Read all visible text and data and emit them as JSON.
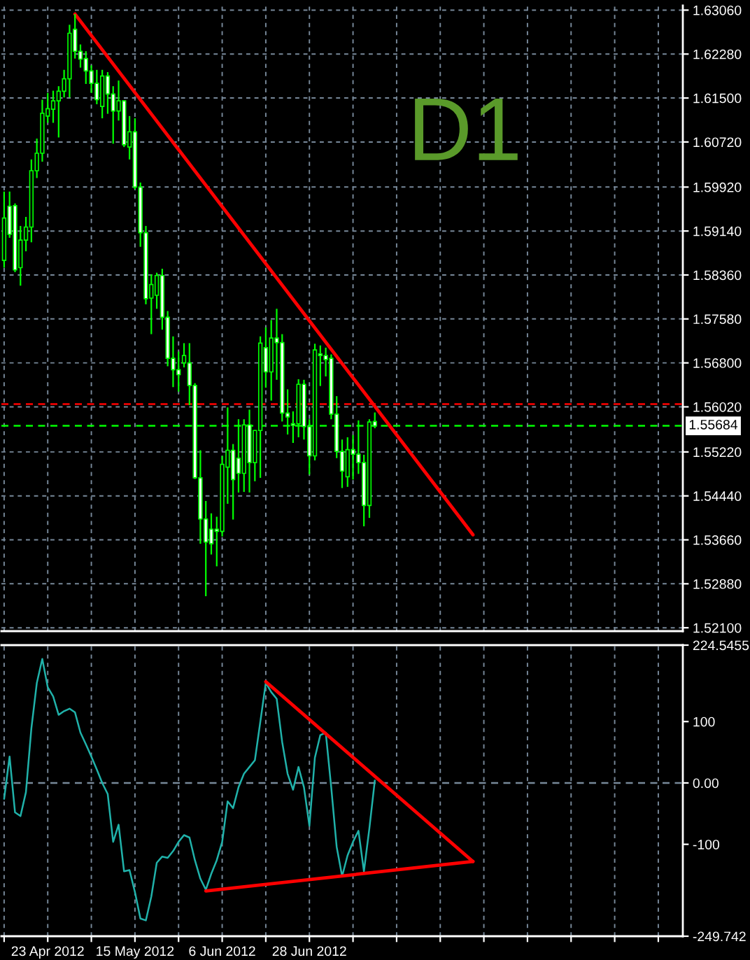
{
  "chart_data": [
    {
      "type": "candlestick",
      "categories": [
        null,
        null,
        null,
        null,
        null,
        null,
        null,
        null,
        null,
        null,
        null,
        null,
        null,
        null,
        null,
        null,
        null,
        null,
        null,
        null,
        null,
        null,
        null,
        null,
        null,
        null,
        null,
        null,
        null,
        null,
        null,
        null,
        null,
        null,
        null,
        null,
        null,
        null,
        null,
        null,
        null,
        null,
        null,
        null,
        null,
        null,
        null,
        null,
        null,
        null,
        null,
        null,
        null,
        null,
        null,
        null,
        null,
        null,
        null,
        null,
        null,
        null,
        null,
        null,
        null,
        null,
        null,
        null,
        null,
        null,
        null,
        null,
        null,
        null,
        null,
        null,
        null,
        null,
        null,
        null,
        null,
        null,
        null,
        null,
        null,
        null,
        null,
        null,
        null,
        null,
        null,
        null,
        null,
        null,
        null,
        null,
        null,
        null,
        null,
        null,
        null,
        null,
        null,
        null,
        null,
        null,
        null,
        null,
        null,
        null,
        null,
        null,
        null,
        null,
        null,
        null,
        null,
        null,
        null,
        null,
        null,
        null,
        null,
        null,
        null
      ],
      "ohlc": [
        [
          1.5862,
          1.5984,
          1.5849,
          1.5937
        ],
        [
          1.5958,
          1.5984,
          1.5902,
          1.5908
        ],
        [
          1.5959,
          1.5963,
          1.5841,
          1.5845
        ],
        [
          1.5849,
          1.5923,
          1.5817,
          1.5898
        ],
        [
          1.5898,
          1.5939,
          1.5878,
          1.5921
        ],
        [
          1.5921,
          1.6041,
          1.5894,
          1.6021
        ],
        [
          1.6021,
          1.6078,
          1.6008,
          1.6052
        ],
        [
          1.6052,
          1.6147,
          1.6037,
          1.6123
        ],
        [
          1.6118,
          1.6159,
          1.6106,
          1.6131
        ],
        [
          1.613,
          1.6163,
          1.6106,
          1.6145
        ],
        [
          1.6145,
          1.6171,
          1.608,
          1.6162
        ],
        [
          1.6162,
          1.62,
          1.6151,
          1.6184
        ],
        [
          1.6184,
          1.628,
          1.6151,
          1.6265
        ],
        [
          1.6272,
          1.6299,
          1.622,
          1.6233
        ],
        [
          1.6233,
          1.6245,
          1.6204,
          1.6219
        ],
        [
          1.622,
          1.6233,
          1.6175,
          1.6198
        ],
        [
          1.6198,
          1.6208,
          1.6159,
          1.6176
        ],
        [
          1.6176,
          1.62,
          1.6139,
          1.6147
        ],
        [
          1.6135,
          1.62,
          1.6114,
          1.6189
        ],
        [
          1.6189,
          1.6196,
          1.6122,
          1.6157
        ],
        [
          1.6157,
          1.6171,
          1.6069,
          1.6127
        ],
        [
          1.6127,
          1.6181,
          1.611,
          1.6145
        ],
        [
          1.6145,
          1.6146,
          1.6063,
          1.6067
        ],
        [
          1.6063,
          1.6118,
          1.6041,
          1.609
        ],
        [
          1.609,
          1.6114,
          1.5988,
          1.5992
        ],
        [
          1.5992,
          1.6,
          1.5886,
          1.5911
        ],
        [
          1.5911,
          1.5923,
          1.5784,
          1.5794
        ],
        [
          1.5795,
          1.5837,
          1.5731,
          1.5819
        ],
        [
          1.58,
          1.584,
          1.5776,
          1.5835
        ],
        [
          1.5835,
          1.5847,
          1.5739,
          1.5761
        ],
        [
          1.5761,
          1.5772,
          1.5674,
          1.5688
        ],
        [
          1.5688,
          1.5727,
          1.5637,
          1.5668
        ],
        [
          1.5668,
          1.57,
          1.5629,
          1.5659
        ],
        [
          1.568,
          1.5715,
          1.5672,
          1.5693
        ],
        [
          1.568,
          1.5715,
          1.5605,
          1.564
        ],
        [
          1.564,
          1.5644,
          1.5474,
          1.5476
        ],
        [
          1.5476,
          1.5525,
          1.5359,
          1.5403
        ],
        [
          1.5403,
          1.5435,
          1.5266,
          1.5362
        ],
        [
          1.5385,
          1.5413,
          1.534,
          1.5359
        ],
        [
          1.5385,
          1.5407,
          1.5319,
          1.5381
        ],
        [
          1.5381,
          1.5515,
          1.5372,
          1.55
        ],
        [
          1.5495,
          1.5601,
          1.543,
          1.5525
        ],
        [
          1.5525,
          1.5536,
          1.5402,
          1.5473
        ],
        [
          1.5511,
          1.558,
          1.545,
          1.5484
        ],
        [
          1.5484,
          1.558,
          1.5451,
          1.557
        ],
        [
          1.557,
          1.5597,
          1.545,
          1.5503
        ],
        [
          1.5503,
          1.5561,
          1.547,
          1.556
        ],
        [
          1.556,
          1.5727,
          1.5476,
          1.5715
        ],
        [
          1.5707,
          1.5743,
          1.5636,
          1.5664
        ],
        [
          1.5664,
          1.5756,
          1.5613,
          1.5724
        ],
        [
          1.5724,
          1.5776,
          1.565,
          1.5716
        ],
        [
          1.5716,
          1.5731,
          1.5576,
          1.5591
        ],
        [
          1.5591,
          1.5633,
          1.5553,
          1.5584
        ],
        [
          1.5572,
          1.5594,
          1.5538,
          1.5569
        ],
        [
          1.5572,
          1.5651,
          1.5548,
          1.5642
        ],
        [
          1.5642,
          1.565,
          1.5544,
          1.5567
        ],
        [
          1.5567,
          1.558,
          1.5482,
          1.5515
        ],
        [
          1.5515,
          1.5714,
          1.5507,
          1.5703
        ],
        [
          1.5696,
          1.5711,
          1.5639,
          1.5693
        ],
        [
          1.5693,
          1.5707,
          1.5656,
          1.5686
        ],
        [
          1.5688,
          1.5695,
          1.558,
          1.5589
        ],
        [
          1.5589,
          1.5621,
          1.5511,
          1.5523
        ],
        [
          1.5523,
          1.5544,
          1.5458,
          1.5488
        ],
        [
          1.5478,
          1.5548,
          1.546,
          1.5526
        ],
        [
          1.5526,
          1.5552,
          1.5473,
          1.5518
        ],
        [
          1.5518,
          1.5578,
          1.5483,
          1.5503
        ],
        [
          1.5503,
          1.5517,
          1.539,
          1.5427
        ],
        [
          1.5427,
          1.558,
          1.5405,
          1.5575
        ],
        [
          1.5576,
          1.5592,
          1.5564,
          1.5568
        ],
        null,
        null,
        null,
        null,
        null,
        null,
        null,
        null,
        null,
        null,
        null,
        null,
        null,
        null,
        null,
        null,
        null,
        null,
        null,
        null,
        null,
        null,
        null,
        null,
        null,
        null,
        null,
        null,
        null,
        null,
        null,
        null,
        null,
        null,
        null,
        null,
        null,
        null,
        null,
        null,
        null,
        null,
        null,
        null,
        null,
        null,
        null,
        null,
        null,
        null,
        null,
        null,
        null,
        null,
        null,
        null
      ],
      "series": [
        {
          "type": "line",
          "color": "#ff0000",
          "values": [
            null,
            null,
            null,
            null,
            null,
            null,
            null,
            null,
            null,
            null,
            null,
            null,
            null,
            1.6299,
            null,
            null,
            null,
            null,
            null,
            null,
            null,
            null,
            null,
            null,
            null,
            null,
            null,
            null,
            null,
            null,
            null,
            null,
            null,
            null,
            null,
            null,
            null,
            null,
            null,
            null,
            null,
            null,
            null,
            null,
            null,
            null,
            null,
            null,
            null,
            null,
            null,
            null,
            null,
            null,
            null,
            null,
            null,
            null,
            null,
            null,
            null,
            null,
            null,
            null,
            null,
            null,
            null,
            null,
            null,
            null,
            null,
            null,
            null,
            null,
            null,
            null,
            null,
            null,
            null,
            null,
            null,
            null,
            null,
            null,
            null,
            null,
            1.5375,
            null,
            null,
            null,
            null,
            null,
            null,
            null,
            null,
            null,
            null,
            null,
            null,
            null,
            null,
            null,
            null,
            null,
            null,
            null,
            null,
            null,
            null,
            null,
            null,
            null,
            null,
            null,
            null,
            null,
            null,
            null,
            null,
            null,
            null,
            null,
            null,
            null,
            null
          ]
        }
      ],
      "ylim": [
        1.5204,
        1.6314
      ],
      "yticks": [
        {
          "value": 1.6306,
          "label": "1.63060"
        },
        {
          "value": 1.6228,
          "label": "1.62280"
        },
        {
          "value": 1.615,
          "label": "1.61500"
        },
        {
          "value": 1.6072,
          "label": "1.60720"
        },
        {
          "value": 1.5992,
          "label": "1.59920"
        },
        {
          "value": 1.5914,
          "label": "1.59140"
        },
        {
          "value": 1.5836,
          "label": "1.58360"
        },
        {
          "value": 1.5758,
          "label": "1.57580"
        },
        {
          "value": 1.568,
          "label": "1.56800"
        },
        {
          "value": 1.5602,
          "label": "1.56020"
        },
        {
          "value": 1.5522,
          "label": "1.55220"
        },
        {
          "value": 1.5444,
          "label": "1.54440"
        },
        {
          "value": 1.5366,
          "label": "1.53660"
        },
        {
          "value": 1.5288,
          "label": "1.52880"
        },
        {
          "value": 1.521,
          "label": "1.52100"
        }
      ],
      "grid": true,
      "tick_labels": "y",
      "ref_lines": [
        {
          "axis": "y",
          "value": 1.5607,
          "color": "#ff0000",
          "line_style": "dashed"
        },
        {
          "axis": "y",
          "value": 1.55684,
          "label": "1.55684",
          "color": "#00ff00",
          "line_style": "dashed"
        }
      ],
      "annotations": [
        "D1"
      ]
    },
    {
      "type": "line",
      "categories": [
        null,
        null,
        null,
        null,
        null,
        null,
        null,
        null,
        "23 Apr 2012",
        null,
        null,
        null,
        null,
        null,
        null,
        null,
        null,
        null,
        null,
        null,
        null,
        null,
        null,
        null,
        "15 May 2012",
        null,
        null,
        null,
        null,
        null,
        null,
        null,
        null,
        null,
        null,
        null,
        null,
        null,
        null,
        null,
        "6 Jun 2012",
        null,
        null,
        null,
        null,
        null,
        null,
        null,
        null,
        null,
        null,
        null,
        null,
        null,
        null,
        null,
        "28 Jun 2012",
        null,
        null,
        null,
        null,
        null,
        null,
        null,
        null,
        null,
        null,
        null,
        null,
        null,
        null,
        null,
        null,
        null,
        null,
        null,
        null,
        null,
        null,
        null,
        null,
        null,
        null,
        null,
        null,
        null,
        null,
        null,
        null,
        null,
        null,
        null,
        null,
        null,
        null,
        null,
        null,
        null,
        null,
        null,
        null,
        null,
        null,
        null,
        null,
        null,
        null,
        null,
        null,
        null,
        null,
        null,
        null,
        null,
        null,
        null,
        null,
        null,
        null,
        null,
        null,
        null,
        null,
        null,
        null
      ],
      "series": [
        {
          "color": "#20b2aa",
          "values": [
            -26,
            43,
            -48,
            -54,
            -15,
            89,
            163,
            202,
            156,
            141,
            111,
            117,
            121,
            115,
            82,
            63,
            43,
            22,
            0,
            -18,
            -96,
            -68,
            -144,
            -142,
            -178,
            -221,
            -224,
            -185,
            -130,
            -120,
            -122,
            -111,
            -96,
            -85,
            -89,
            -126,
            -156,
            -174,
            -148,
            -126,
            -96,
            -30,
            -41,
            -7,
            15,
            26,
            37,
            100,
            163,
            148,
            137,
            67,
            15,
            -11,
            26,
            -7,
            -70,
            41,
            78,
            82,
            -7,
            -104,
            -152,
            -118,
            -96,
            -78,
            -144,
            -74,
            4,
            null,
            null,
            null,
            null,
            null,
            null,
            null,
            null,
            null,
            null,
            null,
            null,
            null,
            null,
            null,
            null,
            null,
            null,
            null,
            null,
            null,
            null,
            null,
            null,
            null,
            null,
            null,
            null,
            null,
            null,
            null,
            null,
            null,
            null,
            null,
            null,
            null,
            null,
            null,
            null,
            null,
            null,
            null,
            null,
            null,
            null,
            null,
            null,
            null,
            null,
            null,
            null,
            null,
            null,
            null,
            null
          ]
        },
        {
          "type": "line",
          "color": "#ff0000",
          "values": [
            null,
            null,
            null,
            null,
            null,
            null,
            null,
            null,
            null,
            null,
            null,
            null,
            null,
            null,
            null,
            null,
            null,
            null,
            null,
            null,
            null,
            null,
            null,
            null,
            null,
            null,
            null,
            null,
            null,
            null,
            null,
            null,
            null,
            null,
            null,
            null,
            null,
            null,
            null,
            null,
            null,
            null,
            null,
            null,
            null,
            null,
            null,
            null,
            165,
            null,
            null,
            null,
            null,
            null,
            null,
            null,
            null,
            null,
            null,
            null,
            null,
            null,
            null,
            null,
            null,
            null,
            null,
            null,
            null,
            null,
            null,
            null,
            null,
            null,
            null,
            null,
            null,
            null,
            null,
            null,
            null,
            null,
            null,
            null,
            null,
            null,
            -128,
            null,
            null,
            null,
            null,
            null,
            null,
            null,
            null,
            null,
            null,
            null,
            null,
            null,
            null,
            null,
            null,
            null,
            null,
            null,
            null,
            null,
            null,
            null,
            null,
            null,
            null,
            null,
            null,
            null,
            null,
            null,
            null,
            null,
            null,
            null,
            null,
            null,
            null
          ]
        },
        {
          "type": "line",
          "color": "#ff0000",
          "values": [
            null,
            null,
            null,
            null,
            null,
            null,
            null,
            null,
            null,
            null,
            null,
            null,
            null,
            null,
            null,
            null,
            null,
            null,
            null,
            null,
            null,
            null,
            null,
            null,
            null,
            null,
            null,
            null,
            null,
            null,
            null,
            null,
            null,
            null,
            null,
            null,
            null,
            -176,
            null,
            null,
            null,
            null,
            null,
            null,
            null,
            null,
            null,
            null,
            null,
            null,
            null,
            null,
            null,
            null,
            null,
            null,
            null,
            null,
            null,
            null,
            null,
            null,
            null,
            null,
            null,
            null,
            null,
            null,
            null,
            null,
            null,
            null,
            null,
            null,
            null,
            null,
            null,
            null,
            null,
            null,
            null,
            null,
            null,
            null,
            null,
            null,
            -128,
            null,
            null,
            null,
            null,
            null,
            null,
            null,
            null,
            null,
            null,
            null,
            null,
            null,
            null,
            null,
            null,
            null,
            null,
            null,
            null,
            null,
            null,
            null,
            null,
            null,
            null,
            null,
            null,
            null,
            null,
            null,
            null,
            null,
            null,
            null,
            null,
            null,
            null
          ]
        }
      ],
      "ylim": [
        -249.742,
        224.5455
      ],
      "yticks": [
        {
          "value": 224.5455,
          "label": "224.5455"
        },
        100,
        {
          "value": 0,
          "label": "0.00"
        },
        -100,
        {
          "value": -249.742,
          "label": "-249.742"
        }
      ],
      "grid": "x",
      "ref_lines": [
        {
          "axis": "y",
          "value": 0,
          "color": "#778899",
          "line_style": "dashed"
        }
      ]
    }
  ]
}
